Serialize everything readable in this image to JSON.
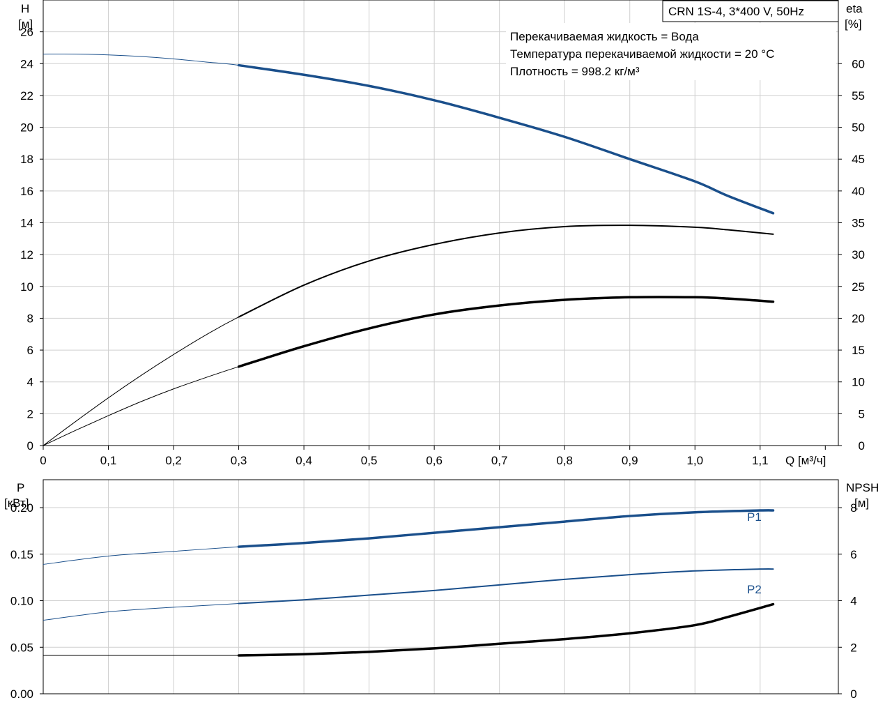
{
  "pump_title": "CRN 1S-4, 3*400 V, 50Hz",
  "fluid_info": [
    "Перекачиваемая жидкость = Вода",
    "Температура перекачиваемой жидкости = 20 °C",
    "Плотность = 998.2 кг/м³"
  ],
  "colors": {
    "blue": "#1a4f8b",
    "black": "#000000",
    "grid": "#cfcfcf"
  },
  "chart_data": [
    {
      "type": "line",
      "name": "top-panel",
      "xlabel": "Q [м³/ч]",
      "ylabel_left": [
        "H",
        "[м]"
      ],
      "ylabel_right": [
        "eta",
        "[%]"
      ],
      "xlim": [
        0,
        1.22
      ],
      "ylim_left": [
        0,
        28
      ],
      "ylim_right": [
        0,
        70
      ],
      "x_ticks": [
        0,
        0.1,
        0.2,
        0.3,
        0.4,
        0.5,
        0.6,
        0.7,
        0.8,
        0.9,
        1.0,
        1.1
      ],
      "x_tick_labels": [
        "0",
        "0,1",
        "0,2",
        "0,3",
        "0,4",
        "0,5",
        "0,6",
        "0,7",
        "0,8",
        "0,9",
        "1,0",
        "1,1"
      ],
      "y_left_ticks": [
        0,
        2,
        4,
        6,
        8,
        10,
        12,
        14,
        16,
        18,
        20,
        22,
        24,
        26
      ],
      "y_right_ticks": [
        0,
        5,
        10,
        15,
        20,
        25,
        30,
        35,
        40,
        45,
        50,
        55,
        60
      ],
      "grid": true,
      "operating_range_start": 0.3,
      "series": [
        {
          "key": "head",
          "axis": "left",
          "color": "#1a4f8b",
          "x": [
            0,
            0.05,
            0.1,
            0.15,
            0.2,
            0.25,
            0.3,
            0.4,
            0.5,
            0.6,
            0.7,
            0.8,
            0.9,
            1.0,
            1.05,
            1.12
          ],
          "y": [
            24.6,
            24.6,
            24.55,
            24.45,
            24.3,
            24.1,
            23.9,
            23.3,
            22.6,
            21.7,
            20.6,
            19.4,
            18.0,
            16.6,
            15.7,
            14.6
          ]
        },
        {
          "key": "efficiency",
          "axis": "right",
          "color": "#000000",
          "x": [
            0,
            0.05,
            0.1,
            0.15,
            0.2,
            0.25,
            0.3,
            0.4,
            0.5,
            0.6,
            0.7,
            0.8,
            0.9,
            1.0,
            1.05,
            1.12
          ],
          "y": [
            0,
            3.8,
            7.5,
            11.0,
            14.3,
            17.4,
            20.2,
            25.2,
            29.0,
            31.6,
            33.4,
            34.4,
            34.6,
            34.3,
            33.9,
            33.2
          ]
        },
        {
          "key": "efficiency-total",
          "axis": "right",
          "color": "#000000",
          "x": [
            0,
            0.05,
            0.1,
            0.15,
            0.2,
            0.25,
            0.3,
            0.4,
            0.5,
            0.6,
            0.7,
            0.8,
            0.9,
            1.0,
            1.05,
            1.12
          ],
          "y": [
            0,
            2.4,
            4.7,
            6.9,
            8.9,
            10.7,
            12.4,
            15.6,
            18.4,
            20.6,
            22.0,
            22.9,
            23.3,
            23.3,
            23.1,
            22.6
          ]
        }
      ]
    },
    {
      "type": "line",
      "name": "bottom-panel",
      "ylabel_left": [
        "P",
        "[кВт]"
      ],
      "ylabel_right": [
        "NPSH",
        "[м]"
      ],
      "xlim": [
        0,
        1.22
      ],
      "ylim_left": [
        0,
        0.23
      ],
      "ylim_right": [
        0,
        9.2
      ],
      "y_left_ticks": [
        0,
        0.05,
        0.1,
        0.15,
        0.2
      ],
      "y_left_tick_labels": [
        "0.00",
        "0.05",
        "0.10",
        "0.15",
        "0.20"
      ],
      "y_right_ticks": [
        0,
        2,
        4,
        6,
        8
      ],
      "grid": true,
      "operating_range_start": 0.3,
      "series": [
        {
          "key": "P1",
          "name": "P1",
          "axis": "left",
          "color": "#1a4f8b",
          "x": [
            0,
            0.1,
            0.2,
            0.3,
            0.4,
            0.5,
            0.6,
            0.7,
            0.8,
            0.9,
            1.0,
            1.1,
            1.12
          ],
          "y": [
            0.139,
            0.148,
            0.153,
            0.158,
            0.162,
            0.167,
            0.173,
            0.179,
            0.185,
            0.191,
            0.195,
            0.197,
            0.197
          ]
        },
        {
          "key": "P2",
          "name": "P2",
          "axis": "left",
          "color": "#1a4f8b",
          "x": [
            0,
            0.1,
            0.2,
            0.3,
            0.4,
            0.5,
            0.6,
            0.7,
            0.8,
            0.9,
            1.0,
            1.1,
            1.12
          ],
          "y": [
            0.079,
            0.088,
            0.093,
            0.097,
            0.101,
            0.106,
            0.111,
            0.117,
            0.123,
            0.128,
            0.132,
            0.134,
            0.134
          ]
        },
        {
          "key": "NPSH",
          "axis": "right",
          "color": "#000000",
          "x": [
            0,
            0.1,
            0.2,
            0.3,
            0.4,
            0.5,
            0.6,
            0.7,
            0.8,
            0.9,
            1.0,
            1.05,
            1.12
          ],
          "y": [
            1.65,
            1.65,
            1.65,
            1.65,
            1.7,
            1.8,
            1.95,
            2.15,
            2.35,
            2.6,
            2.95,
            3.3,
            3.85
          ]
        }
      ]
    }
  ]
}
